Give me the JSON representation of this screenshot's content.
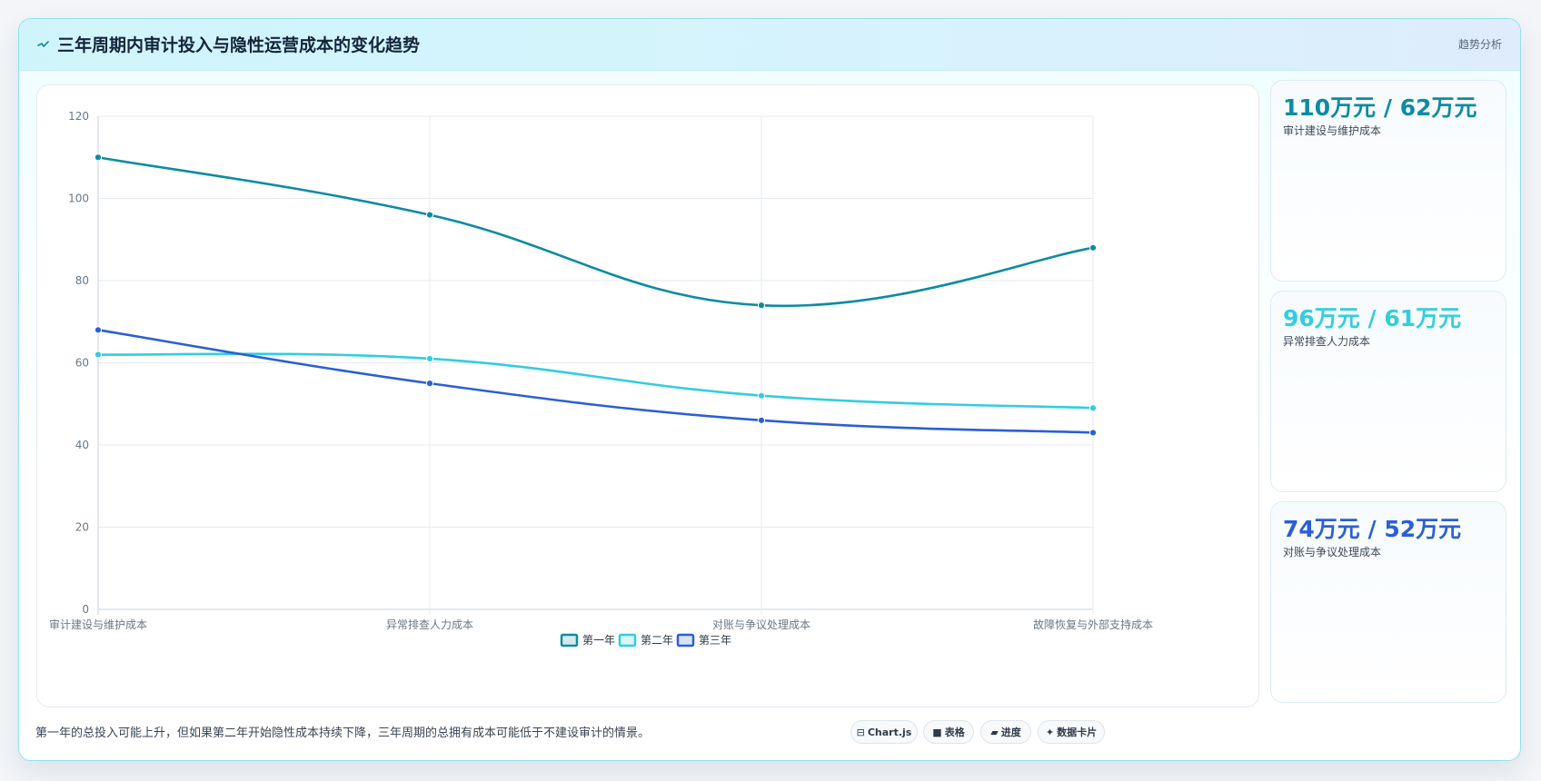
{
  "header": {
    "icon": "pulse-icon",
    "title": "三年周期内审计投入与隐性运营成本的变化趋势",
    "tag": "趋势分析"
  },
  "chart_data": {
    "type": "line",
    "categories": [
      "审计建设与维护成本",
      "异常排查人力成本",
      "对账与争议处理成本",
      "故障恢复与外部支持成本"
    ],
    "series": [
      {
        "name": "第一年",
        "values": [
          110,
          96,
          74,
          88
        ],
        "color": "#0e8ba3"
      },
      {
        "name": "第二年",
        "values": [
          62,
          61,
          52,
          49
        ],
        "color": "#33cde0"
      },
      {
        "name": "第三年",
        "values": [
          68,
          55,
          46,
          43
        ],
        "color": "#2c5fd6"
      }
    ],
    "ylim": [
      0,
      120
    ],
    "yticks": [
      0,
      20,
      40,
      60,
      80,
      100,
      120
    ],
    "grid": true,
    "legend_position": "bottom"
  },
  "stats": [
    {
      "value": "110万元 / 62万元",
      "label": "审计建设与维护成本",
      "color": "#0e8ba3"
    },
    {
      "value": "96万元 / 61万元",
      "label": "异常排查人力成本",
      "color": "#33cde0"
    },
    {
      "value": "74万元 / 52万元",
      "label": "对账与争议处理成本",
      "color": "#2c5fd6"
    }
  ],
  "footer": {
    "note": "第一年的总投入可能上升，但如果第二年开始隐性成本持续下降，三年周期的总拥有成本可能低于不建设审计的情景。",
    "chips": [
      {
        "icon": "chart-icon",
        "glyph": "⊟",
        "label": "Chart.js"
      },
      {
        "icon": "table-icon",
        "glyph": "■",
        "label": "表格"
      },
      {
        "icon": "progress-icon",
        "glyph": "▰",
        "label": "进度"
      },
      {
        "icon": "sparkle-icon",
        "glyph": "✦",
        "label": "数据卡片"
      }
    ]
  }
}
